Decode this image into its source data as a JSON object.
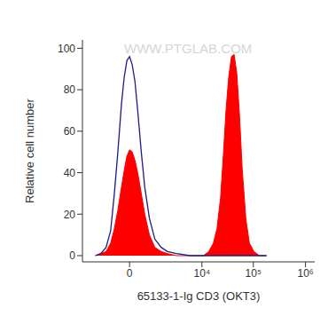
{
  "chart_data": {
    "type": "line",
    "annotations": [
      "WWW.PTGLAB.COM"
    ],
    "x_label": "65133-1-Ig CD3 (OKT3)",
    "y_label": "Relative cell number",
    "log": "x",
    "grid": false,
    "x": [
      -1510,
      -1100,
      -780,
      -560,
      -410,
      -290,
      -185,
      -115,
      -54,
      0,
      54,
      115,
      185,
      290,
      410,
      600,
      880,
      1300,
      1850,
      2960,
      5720,
      10700,
      13700,
      16800,
      19800,
      23300,
      26300,
      29700,
      33500,
      37800,
      42600,
      48000,
      54100,
      61000,
      71600,
      84000,
      102500,
      130300,
      179100
    ],
    "series": [
      {
        "type": "area",
        "color": "#ff0000",
        "values": [
          0,
          1,
          2,
          6,
          13,
          22,
          33,
          41,
          48,
          51,
          50,
          46,
          40,
          30,
          20,
          10,
          4,
          2,
          1,
          0,
          0,
          0,
          2,
          6,
          13,
          28,
          48,
          70,
          86,
          96,
          97,
          88,
          68,
          42,
          18,
          6,
          2,
          0,
          0
        ]
      },
      {
        "type": "line",
        "color": "#1c1c8a",
        "values": [
          0,
          1,
          4,
          12,
          30,
          50,
          73,
          86,
          94,
          96,
          92,
          84,
          70,
          50,
          33,
          18,
          8,
          4,
          2,
          1,
          0,
          0,
          0,
          0,
          0,
          0,
          0,
          0,
          0,
          0,
          0,
          0,
          0,
          0,
          0,
          0,
          0,
          0,
          0
        ]
      }
    ],
    "xlim": [
      -3000,
      1500000
    ],
    "xticks": [
      0,
      {
        "value": 10000,
        "label": "10⁴"
      },
      {
        "value": 100000,
        "label": "10⁵"
      },
      {
        "value": 1000000,
        "label": "10⁶"
      }
    ],
    "ylim": [
      -3,
      104
    ],
    "yticks": [
      0,
      20,
      40,
      60,
      80,
      100
    ]
  }
}
